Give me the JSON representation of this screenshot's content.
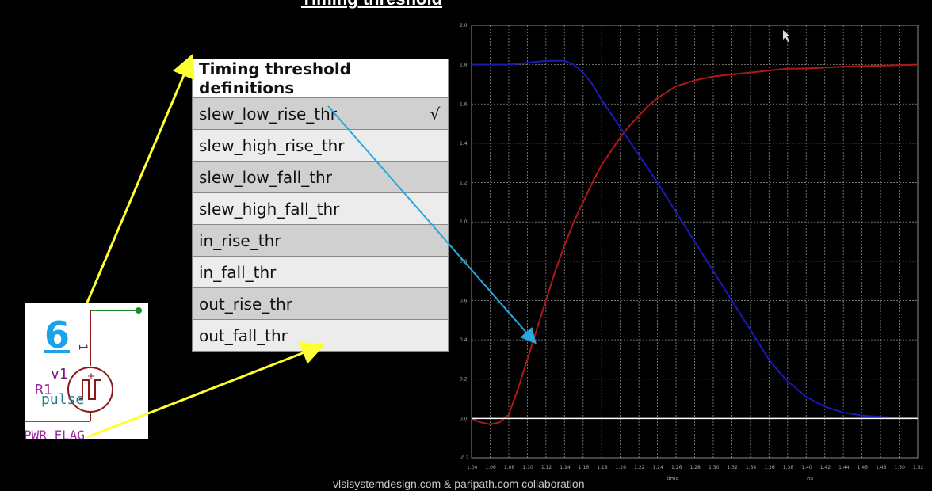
{
  "slide": {
    "title": "Timing threshold",
    "footer": "vlsisystemdesign.com & paripath.com collaboration"
  },
  "table": {
    "header": "Timing threshold definitions",
    "rows": [
      {
        "name": "slew_low_rise_thr",
        "mark": "√"
      },
      {
        "name": "slew_high_rise_thr",
        "mark": ""
      },
      {
        "name": "slew_low_fall_thr",
        "mark": ""
      },
      {
        "name": "slew_high_fall_thr",
        "mark": ""
      },
      {
        "name": "in_rise_thr",
        "mark": ""
      },
      {
        "name": "in_fall_thr",
        "mark": ""
      },
      {
        "name": "out_rise_thr",
        "mark": ""
      },
      {
        "name": "out_fall_thr",
        "mark": ""
      }
    ]
  },
  "schematic": {
    "number": "6",
    "source_name": "v1",
    "resistor_label": "R1",
    "source_type": "pulse",
    "pin_label": "1",
    "plus_sign": "+",
    "flag_label": "PWR_FLAG"
  },
  "colors": {
    "arrow_yellow": "#ffff33",
    "arrow_blue": "#29a8e0",
    "rising_curve": "#b01818",
    "falling_curve": "#1a1ab8",
    "grid": "#8a8a8a"
  },
  "chart_data": {
    "type": "line",
    "title": "",
    "xlabel": "time",
    "xunit": "ns",
    "ylabel": "",
    "xlim": [
      1.04,
      1.52
    ],
    "ylim": [
      -0.2,
      2.0
    ],
    "x_ticks": [
      "1.04",
      "1.06",
      "1.08",
      "1.10",
      "1.12",
      "1.14",
      "1.16",
      "1.18",
      "1.20",
      "1.22",
      "1.24",
      "1.26",
      "1.28",
      "1.30",
      "1.32",
      "1.34",
      "1.36",
      "1.38",
      "1.40",
      "1.42",
      "1.44",
      "1.46",
      "1.48",
      "1.50",
      "1.52"
    ],
    "y_ticks": [
      "-0.2",
      "0.0",
      "0.2",
      "0.4",
      "0.6",
      "0.8",
      "1.0",
      "1.2",
      "1.4",
      "1.6",
      "1.8",
      "2.0"
    ],
    "series": [
      {
        "color": "#b01818",
        "x": [
          1.04,
          1.05,
          1.06,
          1.07,
          1.08,
          1.09,
          1.1,
          1.11,
          1.12,
          1.13,
          1.14,
          1.15,
          1.16,
          1.17,
          1.18,
          1.19,
          1.2,
          1.21,
          1.22,
          1.23,
          1.24,
          1.26,
          1.28,
          1.3,
          1.32,
          1.34,
          1.36,
          1.38,
          1.4,
          1.44,
          1.48,
          1.52
        ],
        "y": [
          0.0,
          -0.02,
          -0.03,
          -0.02,
          0.02,
          0.15,
          0.3,
          0.45,
          0.6,
          0.75,
          0.88,
          1.0,
          1.1,
          1.2,
          1.29,
          1.36,
          1.43,
          1.49,
          1.54,
          1.59,
          1.63,
          1.69,
          1.72,
          1.74,
          1.75,
          1.76,
          1.77,
          1.78,
          1.78,
          1.79,
          1.795,
          1.8
        ]
      },
      {
        "color": "#1a1ab8",
        "x": [
          1.04,
          1.08,
          1.1,
          1.12,
          1.14,
          1.15,
          1.16,
          1.17,
          1.18,
          1.19,
          1.2,
          1.22,
          1.24,
          1.26,
          1.28,
          1.3,
          1.32,
          1.34,
          1.36,
          1.37,
          1.38,
          1.4,
          1.42,
          1.44,
          1.46,
          1.48,
          1.5,
          1.52
        ],
        "y": [
          1.8,
          1.8,
          1.81,
          1.82,
          1.82,
          1.8,
          1.76,
          1.7,
          1.62,
          1.55,
          1.48,
          1.34,
          1.2,
          1.05,
          0.9,
          0.75,
          0.6,
          0.45,
          0.3,
          0.24,
          0.19,
          0.11,
          0.06,
          0.03,
          0.015,
          0.008,
          0.004,
          0.002
        ]
      },
      {
        "color": "#ffffff",
        "x": [
          1.04,
          1.52
        ],
        "y": [
          0.0,
          0.0
        ]
      }
    ]
  }
}
